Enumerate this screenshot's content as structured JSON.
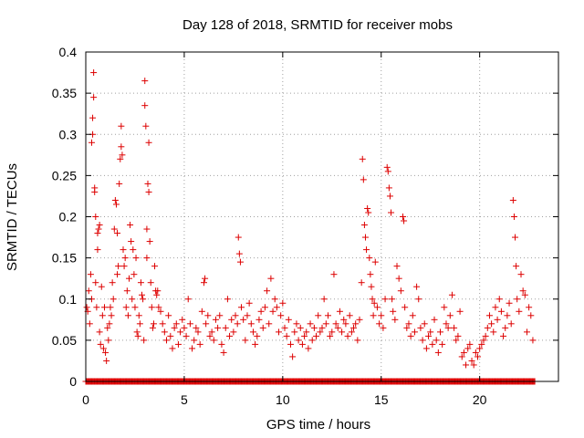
{
  "chart_data": {
    "type": "scatter",
    "title": "Day 128 of 2018, SRMTID for receiver mobs",
    "xlabel": "GPS time / hours",
    "ylabel": "SRMTID / TECUs",
    "xlim": [
      0,
      24
    ],
    "ylim": [
      0,
      0.4
    ],
    "xticks": [
      0,
      5,
      10,
      15,
      20
    ],
    "xtick_labels": [
      "0",
      "5",
      "10",
      "15",
      "20"
    ],
    "yticks": [
      0,
      0.05,
      0.1,
      0.15,
      0.2,
      0.25,
      0.3,
      0.35,
      0.4
    ],
    "ytick_labels": [
      "0",
      "0.05",
      "0.1",
      "0.15",
      "0.2",
      "0.25",
      "0.3",
      "0.35",
      "0.4"
    ],
    "grid": true,
    "marker": "+",
    "color": "#dd0000",
    "series": [
      {
        "name": "SRMTID",
        "points": [
          [
            0.05,
            0.09
          ],
          [
            0.1,
            0.085
          ],
          [
            0.15,
            0.11
          ],
          [
            0.2,
            0.07
          ],
          [
            0.25,
            0.13
          ],
          [
            0.3,
            0.1
          ],
          [
            0.3,
            0.29
          ],
          [
            0.35,
            0.3
          ],
          [
            0.35,
            0.32
          ],
          [
            0.4,
            0.375
          ],
          [
            0.4,
            0.345
          ],
          [
            0.45,
            0.235
          ],
          [
            0.45,
            0.23
          ],
          [
            0.5,
            0.2
          ],
          [
            0.5,
            0.12
          ],
          [
            0.55,
            0.09
          ],
          [
            0.6,
            0.18
          ],
          [
            0.6,
            0.16
          ],
          [
            0.65,
            0.185
          ],
          [
            0.7,
            0.19
          ],
          [
            0.7,
            0.06
          ],
          [
            0.75,
            0.045
          ],
          [
            0.8,
            0.115
          ],
          [
            0.85,
            0.08
          ],
          [
            0.9,
            0.04
          ],
          [
            0.95,
            0.09
          ],
          [
            1.0,
            0.035
          ],
          [
            1.05,
            0.025
          ],
          [
            1.1,
            0.065
          ],
          [
            1.15,
            0.05
          ],
          [
            1.2,
            0.07
          ],
          [
            1.25,
            0.09
          ],
          [
            1.3,
            0.08
          ],
          [
            1.35,
            0.12
          ],
          [
            1.4,
            0.1
          ],
          [
            1.45,
            0.185
          ],
          [
            1.5,
            0.22
          ],
          [
            1.55,
            0.215
          ],
          [
            1.6,
            0.18
          ],
          [
            1.6,
            0.13
          ],
          [
            1.65,
            0.14
          ],
          [
            1.7,
            0.24
          ],
          [
            1.75,
            0.27
          ],
          [
            1.8,
            0.285
          ],
          [
            1.8,
            0.31
          ],
          [
            1.85,
            0.275
          ],
          [
            1.9,
            0.16
          ],
          [
            1.95,
            0.14
          ],
          [
            2.0,
            0.15
          ],
          [
            2.05,
            0.09
          ],
          [
            2.1,
            0.11
          ],
          [
            2.15,
            0.08
          ],
          [
            2.2,
            0.125
          ],
          [
            2.25,
            0.19
          ],
          [
            2.3,
            0.17
          ],
          [
            2.35,
            0.1
          ],
          [
            2.4,
            0.16
          ],
          [
            2.45,
            0.13
          ],
          [
            2.5,
            0.09
          ],
          [
            2.55,
            0.15
          ],
          [
            2.6,
            0.06
          ],
          [
            2.65,
            0.055
          ],
          [
            2.7,
            0.08
          ],
          [
            2.75,
            0.07
          ],
          [
            2.8,
            0.12
          ],
          [
            2.85,
            0.105
          ],
          [
            2.9,
            0.1
          ],
          [
            2.95,
            0.05
          ],
          [
            3.0,
            0.365
          ],
          [
            3.0,
            0.335
          ],
          [
            3.05,
            0.31
          ],
          [
            3.1,
            0.185
          ],
          [
            3.1,
            0.15
          ],
          [
            3.15,
            0.24
          ],
          [
            3.2,
            0.29
          ],
          [
            3.2,
            0.23
          ],
          [
            3.25,
            0.17
          ],
          [
            3.3,
            0.12
          ],
          [
            3.35,
            0.09
          ],
          [
            3.4,
            0.065
          ],
          [
            3.45,
            0.07
          ],
          [
            3.5,
            0.14
          ],
          [
            3.55,
            0.11
          ],
          [
            3.6,
            0.105
          ],
          [
            3.65,
            0.11
          ],
          [
            3.7,
            0.09
          ],
          [
            3.8,
            0.085
          ],
          [
            3.9,
            0.07
          ],
          [
            4.0,
            0.06
          ],
          [
            4.1,
            0.05
          ],
          [
            4.2,
            0.08
          ],
          [
            4.3,
            0.055
          ],
          [
            4.4,
            0.04
          ],
          [
            4.5,
            0.065
          ],
          [
            4.6,
            0.07
          ],
          [
            4.7,
            0.045
          ],
          [
            4.8,
            0.06
          ],
          [
            4.9,
            0.075
          ],
          [
            5.0,
            0.065
          ],
          [
            5.1,
            0.055
          ],
          [
            5.2,
            0.1
          ],
          [
            5.3,
            0.07
          ],
          [
            5.4,
            0.04
          ],
          [
            5.5,
            0.05
          ],
          [
            5.6,
            0.065
          ],
          [
            5.7,
            0.06
          ],
          [
            5.8,
            0.045
          ],
          [
            5.9,
            0.085
          ],
          [
            6.0,
            0.12
          ],
          [
            6.05,
            0.125
          ],
          [
            6.1,
            0.07
          ],
          [
            6.2,
            0.08
          ],
          [
            6.3,
            0.055
          ],
          [
            6.4,
            0.06
          ],
          [
            6.5,
            0.05
          ],
          [
            6.6,
            0.075
          ],
          [
            6.7,
            0.065
          ],
          [
            6.8,
            0.08
          ],
          [
            6.9,
            0.045
          ],
          [
            7.0,
            0.035
          ],
          [
            7.1,
            0.065
          ],
          [
            7.2,
            0.1
          ],
          [
            7.3,
            0.055
          ],
          [
            7.4,
            0.075
          ],
          [
            7.5,
            0.06
          ],
          [
            7.6,
            0.08
          ],
          [
            7.7,
            0.07
          ],
          [
            7.75,
            0.175
          ],
          [
            7.8,
            0.155
          ],
          [
            7.85,
            0.145
          ],
          [
            7.9,
            0.09
          ],
          [
            8.0,
            0.075
          ],
          [
            8.1,
            0.05
          ],
          [
            8.2,
            0.08
          ],
          [
            8.3,
            0.095
          ],
          [
            8.4,
            0.07
          ],
          [
            8.5,
            0.06
          ],
          [
            8.6,
            0.045
          ],
          [
            8.7,
            0.055
          ],
          [
            8.8,
            0.075
          ],
          [
            8.9,
            0.085
          ],
          [
            9.0,
            0.065
          ],
          [
            9.1,
            0.09
          ],
          [
            9.2,
            0.11
          ],
          [
            9.3,
            0.07
          ],
          [
            9.4,
            0.125
          ],
          [
            9.5,
            0.085
          ],
          [
            9.6,
            0.1
          ],
          [
            9.7,
            0.09
          ],
          [
            9.8,
            0.06
          ],
          [
            9.9,
            0.08
          ],
          [
            10.0,
            0.095
          ],
          [
            10.1,
            0.065
          ],
          [
            10.2,
            0.055
          ],
          [
            10.3,
            0.075
          ],
          [
            10.4,
            0.045
          ],
          [
            10.5,
            0.03
          ],
          [
            10.6,
            0.06
          ],
          [
            10.7,
            0.07
          ],
          [
            10.8,
            0.05
          ],
          [
            10.9,
            0.065
          ],
          [
            11.0,
            0.045
          ],
          [
            11.1,
            0.055
          ],
          [
            11.2,
            0.06
          ],
          [
            11.3,
            0.04
          ],
          [
            11.4,
            0.07
          ],
          [
            11.5,
            0.05
          ],
          [
            11.6,
            0.065
          ],
          [
            11.7,
            0.055
          ],
          [
            11.8,
            0.08
          ],
          [
            11.9,
            0.06
          ],
          [
            12.0,
            0.065
          ],
          [
            12.1,
            0.1
          ],
          [
            12.2,
            0.07
          ],
          [
            12.3,
            0.08
          ],
          [
            12.4,
            0.055
          ],
          [
            12.5,
            0.06
          ],
          [
            12.6,
            0.13
          ],
          [
            12.7,
            0.07
          ],
          [
            12.8,
            0.065
          ],
          [
            12.9,
            0.085
          ],
          [
            13.0,
            0.06
          ],
          [
            13.1,
            0.075
          ],
          [
            13.2,
            0.07
          ],
          [
            13.3,
            0.055
          ],
          [
            13.4,
            0.08
          ],
          [
            13.5,
            0.06
          ],
          [
            13.6,
            0.065
          ],
          [
            13.7,
            0.07
          ],
          [
            13.8,
            0.05
          ],
          [
            13.9,
            0.075
          ],
          [
            14.0,
            0.12
          ],
          [
            14.05,
            0.27
          ],
          [
            14.1,
            0.245
          ],
          [
            14.15,
            0.19
          ],
          [
            14.2,
            0.175
          ],
          [
            14.25,
            0.16
          ],
          [
            14.3,
            0.21
          ],
          [
            14.35,
            0.205
          ],
          [
            14.4,
            0.15
          ],
          [
            14.45,
            0.13
          ],
          [
            14.5,
            0.115
          ],
          [
            14.55,
            0.1
          ],
          [
            14.6,
            0.08
          ],
          [
            14.65,
            0.095
          ],
          [
            14.7,
            0.145
          ],
          [
            14.8,
            0.09
          ],
          [
            14.9,
            0.07
          ],
          [
            15.0,
            0.08
          ],
          [
            15.1,
            0.065
          ],
          [
            15.2,
            0.1
          ],
          [
            15.3,
            0.26
          ],
          [
            15.35,
            0.255
          ],
          [
            15.4,
            0.235
          ],
          [
            15.45,
            0.225
          ],
          [
            15.5,
            0.205
          ],
          [
            15.55,
            0.1
          ],
          [
            15.6,
            0.085
          ],
          [
            15.7,
            0.075
          ],
          [
            15.8,
            0.14
          ],
          [
            15.9,
            0.125
          ],
          [
            16.0,
            0.11
          ],
          [
            16.1,
            0.2
          ],
          [
            16.15,
            0.195
          ],
          [
            16.2,
            0.09
          ],
          [
            16.3,
            0.065
          ],
          [
            16.4,
            0.07
          ],
          [
            16.5,
            0.055
          ],
          [
            16.6,
            0.08
          ],
          [
            16.7,
            0.06
          ],
          [
            16.8,
            0.115
          ],
          [
            16.9,
            0.1
          ],
          [
            17.0,
            0.065
          ],
          [
            17.1,
            0.05
          ],
          [
            17.2,
            0.07
          ],
          [
            17.3,
            0.04
          ],
          [
            17.4,
            0.055
          ],
          [
            17.5,
            0.06
          ],
          [
            17.6,
            0.045
          ],
          [
            17.7,
            0.075
          ],
          [
            17.8,
            0.05
          ],
          [
            17.9,
            0.035
          ],
          [
            18.0,
            0.06
          ],
          [
            18.1,
            0.045
          ],
          [
            18.2,
            0.09
          ],
          [
            18.3,
            0.07
          ],
          [
            18.4,
            0.065
          ],
          [
            18.5,
            0.08
          ],
          [
            18.6,
            0.105
          ],
          [
            18.7,
            0.065
          ],
          [
            18.8,
            0.05
          ],
          [
            18.9,
            0.055
          ],
          [
            19.0,
            0.085
          ],
          [
            19.1,
            0.03
          ],
          [
            19.2,
            0.035
          ],
          [
            19.3,
            0.02
          ],
          [
            19.4,
            0.04
          ],
          [
            19.5,
            0.045
          ],
          [
            19.6,
            0.025
          ],
          [
            19.7,
            0.02
          ],
          [
            19.8,
            0.035
          ],
          [
            19.9,
            0.03
          ],
          [
            20.0,
            0.04
          ],
          [
            20.1,
            0.045
          ],
          [
            20.2,
            0.05
          ],
          [
            20.3,
            0.055
          ],
          [
            20.4,
            0.065
          ],
          [
            20.5,
            0.08
          ],
          [
            20.6,
            0.07
          ],
          [
            20.7,
            0.06
          ],
          [
            20.8,
            0.09
          ],
          [
            20.9,
            0.075
          ],
          [
            21.0,
            0.1
          ],
          [
            21.1,
            0.085
          ],
          [
            21.2,
            0.055
          ],
          [
            21.3,
            0.065
          ],
          [
            21.4,
            0.08
          ],
          [
            21.5,
            0.095
          ],
          [
            21.6,
            0.07
          ],
          [
            21.7,
            0.22
          ],
          [
            21.75,
            0.2
          ],
          [
            21.8,
            0.175
          ],
          [
            21.85,
            0.14
          ],
          [
            21.9,
            0.1
          ],
          [
            22.0,
            0.085
          ],
          [
            22.1,
            0.13
          ],
          [
            22.2,
            0.11
          ],
          [
            22.3,
            0.105
          ],
          [
            22.4,
            0.06
          ],
          [
            22.5,
            0.09
          ],
          [
            22.6,
            0.08
          ],
          [
            22.7,
            0.05
          ]
        ]
      }
    ],
    "zero_line_xrange": [
      0,
      22.8
    ]
  }
}
